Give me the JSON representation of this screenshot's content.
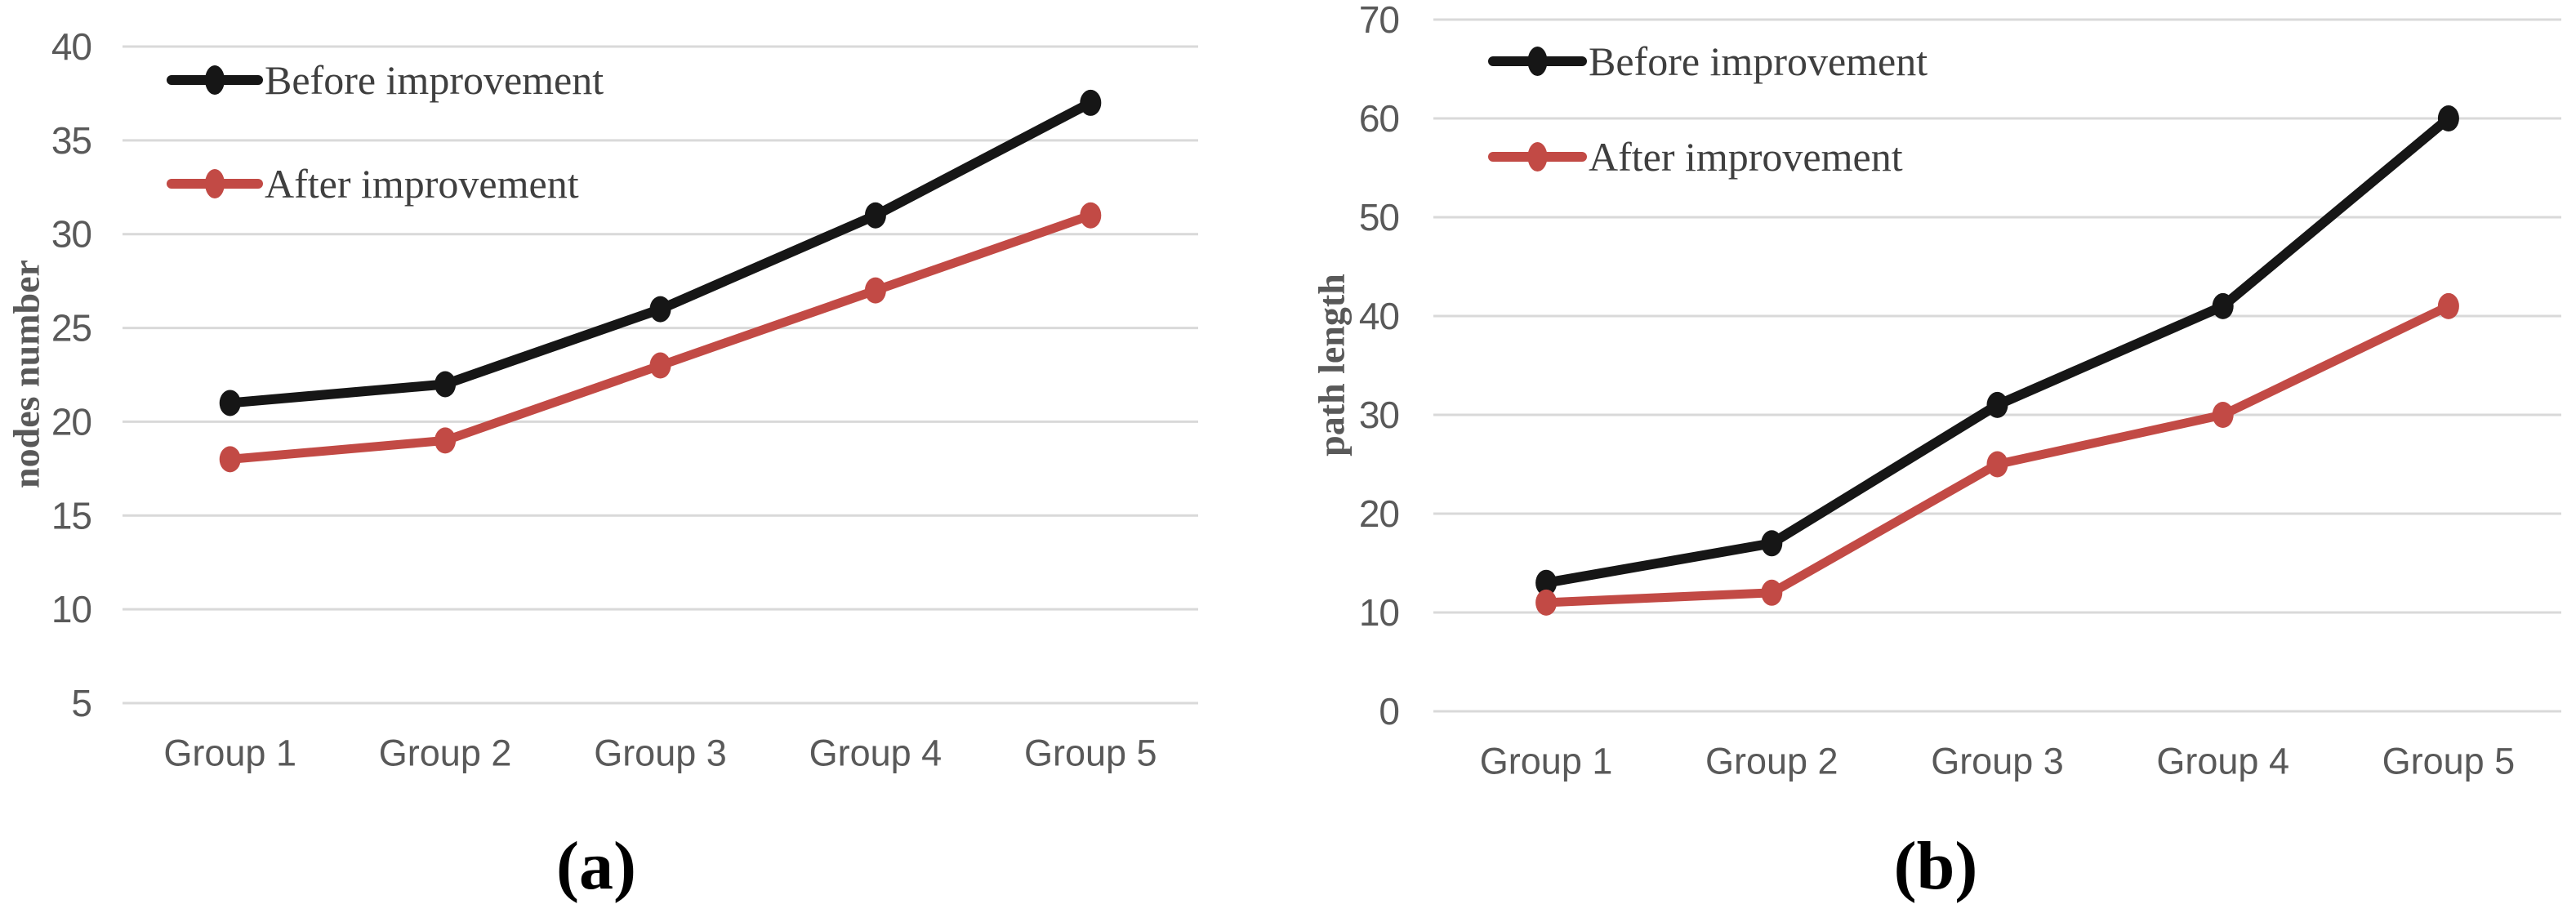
{
  "page": {
    "background": "#ffffff"
  },
  "colors": {
    "grid": "#d9d9d9",
    "tick_label": "#595959",
    "axis_title": "#595959",
    "legend_text": "#3f3f3f",
    "caption": "#000000",
    "series_before": "#161616",
    "series_after": "#c24a45"
  },
  "chart_data": [
    {
      "id": "a",
      "type": "line",
      "title": "",
      "caption": "(a)",
      "xlabel": "",
      "ylabel": "nodes number",
      "categories": [
        "Group 1",
        "Group 2",
        "Group 3",
        "Group 4",
        "Group 5"
      ],
      "series": [
        {
          "name": "Before improvement",
          "color": "#161616",
          "values": [
            21,
            22,
            26,
            31,
            37
          ]
        },
        {
          "name": "After improvement",
          "color": "#c24a45",
          "values": [
            18,
            19,
            23,
            27,
            31
          ]
        }
      ],
      "ylim": [
        5,
        40
      ],
      "yticks": [
        5,
        10,
        15,
        20,
        25,
        30,
        35,
        40
      ],
      "grid": true,
      "legend_position": "top-left-inside"
    },
    {
      "id": "b",
      "type": "line",
      "title": "",
      "caption": "(b)",
      "xlabel": "",
      "ylabel": "path length",
      "categories": [
        "Group 1",
        "Group 2",
        "Group 3",
        "Group 4",
        "Group 5"
      ],
      "series": [
        {
          "name": "Before improvement",
          "color": "#161616",
          "values": [
            13,
            17,
            31,
            41,
            60
          ]
        },
        {
          "name": "After improvement",
          "color": "#c24a45",
          "values": [
            11,
            12,
            25,
            30,
            41
          ]
        }
      ],
      "ylim": [
        0,
        70
      ],
      "yticks": [
        0,
        10,
        20,
        30,
        40,
        50,
        60,
        70
      ],
      "grid": true,
      "legend_position": "top-left-inside"
    }
  ]
}
